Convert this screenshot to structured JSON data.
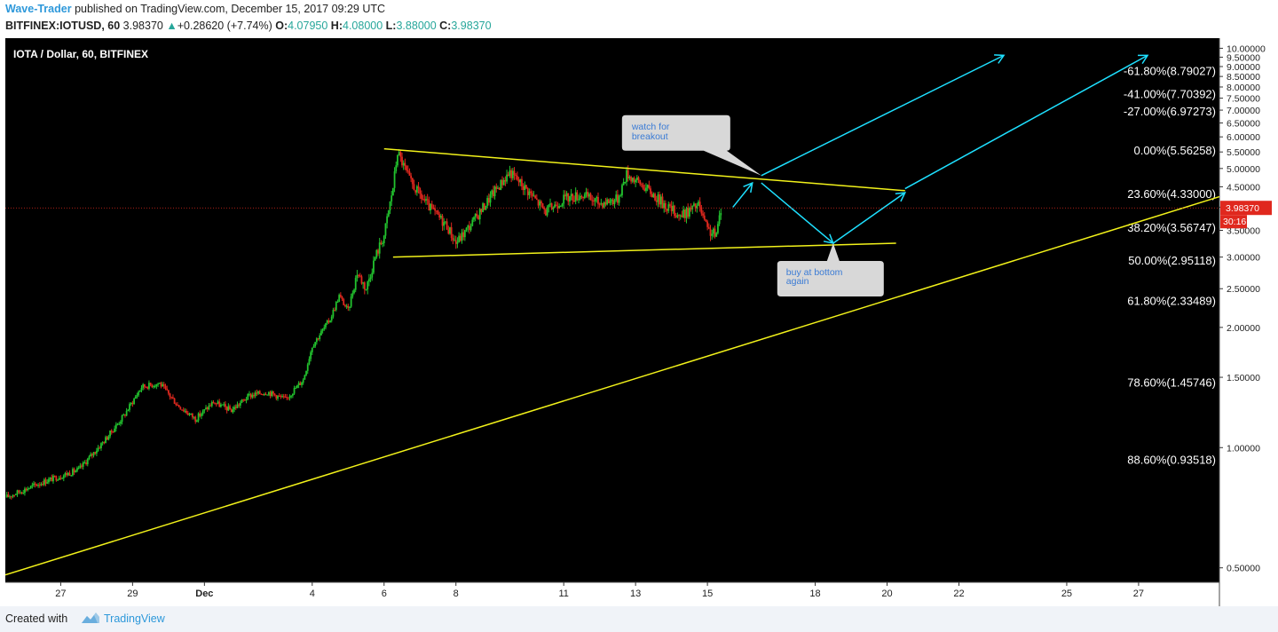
{
  "header": {
    "author": "Wave-Trader",
    "published_text": "published on TradingView.com, December 15, 2017 09:29 UTC",
    "symbol": "BITFINEX:IOTUSD, 60",
    "last": "3.98370",
    "change": "+0.28620 (+7.74%)",
    "o_label": "O:",
    "o_value": "4.07950",
    "h_label": "H:",
    "h_value": "4.08000",
    "l_label": "L:",
    "l_value": "3.88000",
    "c_label": "C:",
    "c_value": "3.98370"
  },
  "footer": {
    "created_with": "Created with",
    "brand": "TradingView"
  },
  "colors": {
    "background": "#000000",
    "candle_up": "#22c32e",
    "candle_down": "#e0281e",
    "trendline": "#f2f21a",
    "arrow": "#1ee0ff",
    "price_line": "#e0281e",
    "callout": "#d8d8d8",
    "callout_text": "#3a7bd5"
  },
  "chart_data": {
    "type": "candlestick",
    "title": "IOTA / Dollar, 60, BITFINEX",
    "y_scale": "log",
    "ylim": [
      0.46,
      10.6
    ],
    "xlim": [
      "2017-11-25 11:00",
      "2017-12-29 06:00"
    ],
    "x_ticks": [
      {
        "date": "2017-11-27",
        "label": "27"
      },
      {
        "date": "2017-11-29",
        "label": "29"
      },
      {
        "date": "2017-12-01",
        "label": "Dec"
      },
      {
        "date": "2017-12-04",
        "label": "4"
      },
      {
        "date": "2017-12-06",
        "label": "6"
      },
      {
        "date": "2017-12-08",
        "label": "8"
      },
      {
        "date": "2017-12-11",
        "label": "11"
      },
      {
        "date": "2017-12-13",
        "label": "13"
      },
      {
        "date": "2017-12-15",
        "label": "15"
      },
      {
        "date": "2017-12-18",
        "label": "18"
      },
      {
        "date": "2017-12-20",
        "label": "20"
      },
      {
        "date": "2017-12-22",
        "label": "22"
      },
      {
        "date": "2017-12-25",
        "label": "25"
      },
      {
        "date": "2017-12-27",
        "label": "27"
      }
    ],
    "y_ticks": [
      "10.00000",
      "9.50000",
      "9.00000",
      "8.50000",
      "8.00000",
      "7.50000",
      "7.00000",
      "6.50000",
      "6.00000",
      "5.50000",
      "5.00000",
      "4.50000",
      "4.00000",
      "3.50000",
      "3.00000",
      "2.50000",
      "2.00000",
      "1.50000",
      "1.00000",
      "0.50000"
    ],
    "price_path": [
      [
        "2017-11-25 11:00",
        0.75
      ],
      [
        "2017-11-26 12:00",
        0.82
      ],
      [
        "2017-11-27 12:00",
        0.88
      ],
      [
        "2017-11-28 06:00",
        1.05
      ],
      [
        "2017-11-28 18:00",
        1.2
      ],
      [
        "2017-11-29 06:00",
        1.42
      ],
      [
        "2017-11-29 18:00",
        1.45
      ],
      [
        "2017-11-30 06:00",
        1.28
      ],
      [
        "2017-11-30 18:00",
        1.18
      ],
      [
        "2017-12-01 06:00",
        1.3
      ],
      [
        "2017-12-01 18:00",
        1.24
      ],
      [
        "2017-12-02 06:00",
        1.35
      ],
      [
        "2017-12-02 18:00",
        1.38
      ],
      [
        "2017-12-03 06:00",
        1.32
      ],
      [
        "2017-12-03 18:00",
        1.48
      ],
      [
        "2017-12-04 00:00",
        1.8
      ],
      [
        "2017-12-04 12:00",
        2.1
      ],
      [
        "2017-12-04 18:00",
        2.4
      ],
      [
        "2017-12-05 00:00",
        2.2
      ],
      [
        "2017-12-05 06:00",
        2.75
      ],
      [
        "2017-12-05 12:00",
        2.5
      ],
      [
        "2017-12-05 18:00",
        3.0
      ],
      [
        "2017-12-06 00:00",
        3.4
      ],
      [
        "2017-12-06 06:00",
        4.5
      ],
      [
        "2017-12-06 09:00",
        5.5
      ],
      [
        "2017-12-06 18:00",
        4.6
      ],
      [
        "2017-12-07 06:00",
        4.0
      ],
      [
        "2017-12-07 18:00",
        3.6
      ],
      [
        "2017-12-08 00:00",
        3.25
      ],
      [
        "2017-12-08 12:00",
        3.7
      ],
      [
        "2017-12-09 00:00",
        4.3
      ],
      [
        "2017-12-09 12:00",
        4.9
      ],
      [
        "2017-12-10 00:00",
        4.4
      ],
      [
        "2017-12-10 12:00",
        3.9
      ],
      [
        "2017-12-11 00:00",
        4.2
      ],
      [
        "2017-12-11 12:00",
        4.3
      ],
      [
        "2017-12-12 00:00",
        4.1
      ],
      [
        "2017-12-12 12:00",
        4.2
      ],
      [
        "2017-12-12 18:00",
        4.85
      ],
      [
        "2017-12-13 06:00",
        4.5
      ],
      [
        "2017-12-13 18:00",
        4.1
      ],
      [
        "2017-12-14 06:00",
        3.8
      ],
      [
        "2017-12-14 18:00",
        4.05
      ],
      [
        "2017-12-15 00:00",
        3.5
      ],
      [
        "2017-12-15 06:00",
        3.4
      ],
      [
        "2017-12-15 09:00",
        3.98
      ]
    ],
    "last_price": {
      "value": 3.9837,
      "label": "3.98370",
      "countdown": "30:16"
    },
    "fib_levels": [
      {
        "label": "-61.80%(8.79027)",
        "value": 8.79027
      },
      {
        "label": "-41.00%(7.70392)",
        "value": 7.70392
      },
      {
        "label": "-27.00%(6.97273)",
        "value": 6.97273
      },
      {
        "label": "0.00%(5.56258)",
        "value": 5.56258
      },
      {
        "label": "23.60%(4.33000)",
        "value": 4.33
      },
      {
        "label": "38.20%(3.56747)",
        "value": 3.56747
      },
      {
        "label": "50.00%(2.95118)",
        "value": 2.95118
      },
      {
        "label": "61.80%(2.33489)",
        "value": 2.33489
      },
      {
        "label": "78.60%(1.45746)",
        "value": 1.45746
      },
      {
        "label": "88.60%(0.93518)",
        "value": 0.93518
      }
    ],
    "trendlines": [
      {
        "name": "triangle-upper",
        "from": [
          "2017-12-06 00:00",
          5.6
        ],
        "to": [
          "2017-12-20 12:00",
          4.4
        ]
      },
      {
        "name": "triangle-lower",
        "from": [
          "2017-12-06 06:00",
          3.0
        ],
        "to": [
          "2017-12-20 06:00",
          3.25
        ]
      },
      {
        "name": "support",
        "from": [
          "2017-11-25 11:00",
          0.48
        ],
        "to": [
          "2017-12-29 06:00",
          4.25
        ]
      }
    ],
    "arrows": [
      {
        "from": [
          "2017-12-15 17:00",
          4.0
        ],
        "to": [
          "2017-12-16 06:00",
          4.6
        ]
      },
      {
        "from": [
          "2017-12-16 12:00",
          4.6
        ],
        "to": [
          "2017-12-18 12:00",
          3.25
        ]
      },
      {
        "from": [
          "2017-12-18 12:00",
          3.25
        ],
        "to": [
          "2017-12-20 12:00",
          4.35
        ]
      },
      {
        "from": [
          "2017-12-16 12:00",
          4.8
        ],
        "to": [
          "2017-12-23 06:00",
          9.6
        ]
      },
      {
        "from": [
          "2017-12-20 12:00",
          4.45
        ],
        "to": [
          "2017-12-27 06:00",
          9.6
        ]
      }
    ],
    "annotations": [
      {
        "name": "watch-for-breakout",
        "lines": [
          "watch for",
          "breakout"
        ],
        "pointer": [
          "2017-12-16 12:00",
          4.8
        ]
      },
      {
        "name": "buy-at-bottom-again",
        "lines": [
          "buy at bottom",
          "again"
        ],
        "pointer": [
          "2017-12-18 12:00",
          3.25
        ]
      }
    ]
  }
}
